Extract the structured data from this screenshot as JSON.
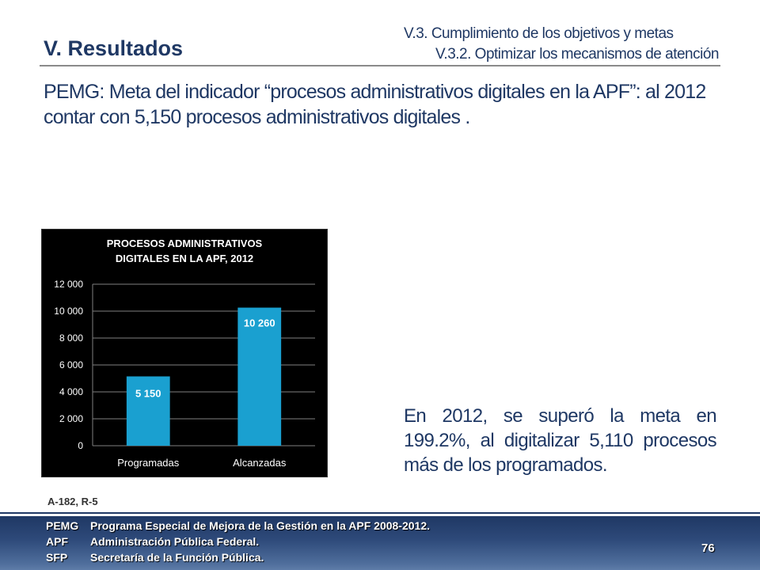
{
  "header": {
    "section_title": "V. Resultados",
    "subtitle_1": "V.3. Cumplimiento de los objetivos y metas",
    "subtitle_2": "V.3.2. Optimizar los mecanismos de atención"
  },
  "headline": "PEMG: Meta del indicador “procesos administrativos digitales en la APF”: al 2012 contar con 5,150 procesos administrativos digitales .",
  "chart_data": {
    "type": "bar",
    "title": "PROCESOS ADMINISTRATIVOS DIGITALES EN LA APF, 2012",
    "title_lines": [
      "PROCESOS ADMINISTRATIVOS",
      "DIGITALES EN LA APF, 2012"
    ],
    "categories": [
      "Programadas",
      "Alcanzadas"
    ],
    "values": [
      5150,
      10260
    ],
    "data_labels": [
      "5 150",
      "10 260"
    ],
    "ylim": [
      0,
      12000
    ],
    "yticks": [
      0,
      2000,
      4000,
      6000,
      8000,
      10000,
      12000
    ],
    "ytick_labels": [
      "0",
      "2 000",
      "4 000",
      "6 000",
      "8 000",
      "10 000",
      "12 000"
    ],
    "grid": true,
    "bar_color": "#1aa0d0",
    "background_color": "#000000"
  },
  "summary": "En 2012, se superó la meta en 199.2%, al digitalizar 5,110 procesos más de los programados.",
  "source": "A-182, R-5",
  "footer": {
    "items": [
      {
        "abbr": "PEMG",
        "text": "Programa Especial de Mejora de la Gestión en la APF 2008-2012."
      },
      {
        "abbr": "APF",
        "text": "Administración Pública Federal."
      },
      {
        "abbr": "SFP",
        "text": "Secretaría de la Función Pública."
      }
    ],
    "page_number": "76"
  }
}
